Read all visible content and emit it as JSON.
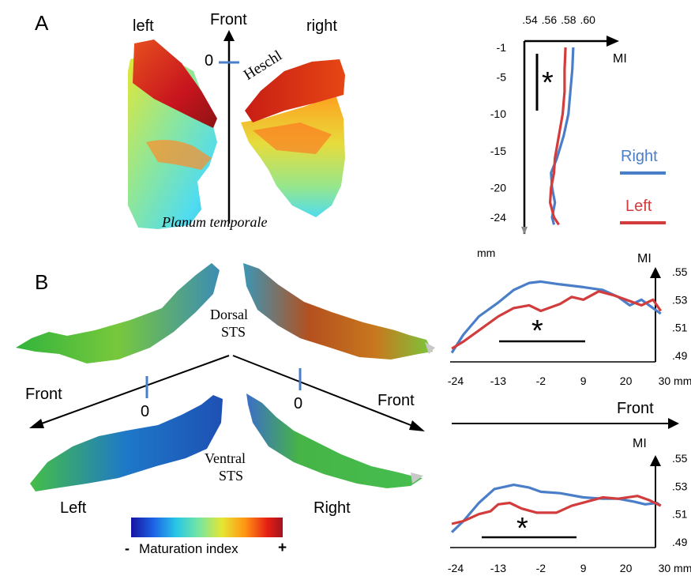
{
  "panel_a": {
    "letter": "A",
    "left": "left",
    "right": "right",
    "front": "Front",
    "zero": "0",
    "heschl": "Heschl",
    "planum": "Planum temporale"
  },
  "panel_b": {
    "letter": "B",
    "dorsal": "Dorsal",
    "ventral": "Ventral",
    "sts": "STS",
    "front": "Front",
    "zero": "0",
    "left": "Left",
    "right": "Right",
    "front_axis": "Front"
  },
  "colorbar": {
    "minus": "-",
    "label": "Maturation index",
    "plus": "+",
    "colors": [
      "#1414a0",
      "#1e64e6",
      "#28c8e6",
      "#78e6a0",
      "#e6e632",
      "#ff9614",
      "#e61e14",
      "#a0141e"
    ]
  },
  "legend": {
    "right": "Right",
    "left": "Left",
    "right_color": "#4a7ec8",
    "left_color": "#d23c3c"
  },
  "chart_data": [
    {
      "type": "line",
      "title": "",
      "xlabel": "MI",
      "ylabel": "",
      "x_ticks": [
        ".54",
        ".56",
        ".58",
        ".60"
      ],
      "y_ticks": [
        "-1",
        "-5",
        "-10",
        "-15",
        "-20",
        "-24"
      ],
      "xlim": [
        0.54,
        0.61
      ],
      "ylim": [
        -1,
        -25
      ],
      "significance": "*",
      "series": [
        {
          "name": "Right",
          "color": "#4a7ec8",
          "points": [
            [
              0.585,
              -1
            ],
            [
              0.584,
              -4
            ],
            [
              0.582,
              -7
            ],
            [
              0.58,
              -10
            ],
            [
              0.575,
              -13
            ],
            [
              0.568,
              -16
            ],
            [
              0.562,
              -18
            ],
            [
              0.563,
              -20
            ],
            [
              0.566,
              -22
            ],
            [
              0.563,
              -24
            ],
            [
              0.565,
              -25
            ]
          ]
        },
        {
          "name": "Left",
          "color": "#d23c3c",
          "points": [
            [
              0.577,
              -1
            ],
            [
              0.576,
              -4
            ],
            [
              0.576,
              -7
            ],
            [
              0.574,
              -10
            ],
            [
              0.57,
              -13
            ],
            [
              0.566,
              -16
            ],
            [
              0.565,
              -18
            ],
            [
              0.562,
              -20
            ],
            [
              0.561,
              -22
            ],
            [
              0.565,
              -24
            ],
            [
              0.57,
              -25
            ]
          ]
        }
      ]
    },
    {
      "type": "line",
      "title": "",
      "xlabel": "mm",
      "ylabel": "MI",
      "x_ticks": [
        "-24",
        "-13",
        "-2",
        "9",
        "20",
        "30 mm"
      ],
      "y_ticks": [
        ".55",
        ".53",
        ".51",
        ".49"
      ],
      "xlim": [
        -26,
        30
      ],
      "ylim": [
        0.49,
        0.55
      ],
      "significance": "*",
      "series": [
        {
          "name": "",
          "color": "#4a7ec8",
          "points": [
            [
              -25,
              0.492
            ],
            [
              -22,
              0.505
            ],
            [
              -18,
              0.518
            ],
            [
              -13,
              0.528
            ],
            [
              -9,
              0.537
            ],
            [
              -5,
              0.542
            ],
            [
              -2,
              0.543
            ],
            [
              3,
              0.541
            ],
            [
              9,
              0.539
            ],
            [
              14,
              0.537
            ],
            [
              18,
              0.532
            ],
            [
              21,
              0.526
            ],
            [
              24,
              0.53
            ],
            [
              27,
              0.524
            ],
            [
              29,
              0.52
            ]
          ]
        },
        {
          "name": "",
          "color": "#d23c3c",
          "points": [
            [
              -25,
              0.495
            ],
            [
              -22,
              0.5
            ],
            [
              -18,
              0.508
            ],
            [
              -13,
              0.518
            ],
            [
              -9,
              0.524
            ],
            [
              -5,
              0.526
            ],
            [
              -2,
              0.522
            ],
            [
              3,
              0.527
            ],
            [
              6,
              0.532
            ],
            [
              9,
              0.53
            ],
            [
              13,
              0.536
            ],
            [
              17,
              0.533
            ],
            [
              20,
              0.53
            ],
            [
              24,
              0.526
            ],
            [
              27,
              0.53
            ],
            [
              29,
              0.522
            ]
          ]
        }
      ]
    },
    {
      "type": "line",
      "title": "",
      "xlabel": "",
      "ylabel": "MI",
      "x_ticks": [
        "-24",
        "-13",
        "-2",
        "9",
        "20",
        "30 mm"
      ],
      "y_ticks": [
        ".55",
        ".53",
        ".51",
        ".49"
      ],
      "xlim": [
        -26,
        30
      ],
      "ylim": [
        0.49,
        0.55
      ],
      "significance": "*",
      "series": [
        {
          "name": "",
          "color": "#4a7ec8",
          "points": [
            [
              -25,
              0.497
            ],
            [
              -22,
              0.505
            ],
            [
              -18,
              0.518
            ],
            [
              -14,
              0.528
            ],
            [
              -9,
              0.531
            ],
            [
              -5,
              0.529
            ],
            [
              -2,
              0.526
            ],
            [
              3,
              0.525
            ],
            [
              9,
              0.522
            ],
            [
              14,
              0.521
            ],
            [
              18,
              0.521
            ],
            [
              22,
              0.519
            ],
            [
              25,
              0.517
            ],
            [
              28,
              0.518
            ],
            [
              29,
              0.516
            ]
          ]
        },
        {
          "name": "",
          "color": "#d23c3c",
          "points": [
            [
              -25,
              0.503
            ],
            [
              -22,
              0.505
            ],
            [
              -18,
              0.51
            ],
            [
              -15,
              0.512
            ],
            [
              -13,
              0.517
            ],
            [
              -10,
              0.518
            ],
            [
              -7,
              0.514
            ],
            [
              -3,
              0.511
            ],
            [
              2,
              0.511
            ],
            [
              6,
              0.516
            ],
            [
              10,
              0.519
            ],
            [
              14,
              0.522
            ],
            [
              18,
              0.521
            ],
            [
              23,
              0.523
            ],
            [
              26,
              0.52
            ],
            [
              29,
              0.516
            ]
          ]
        }
      ]
    }
  ]
}
